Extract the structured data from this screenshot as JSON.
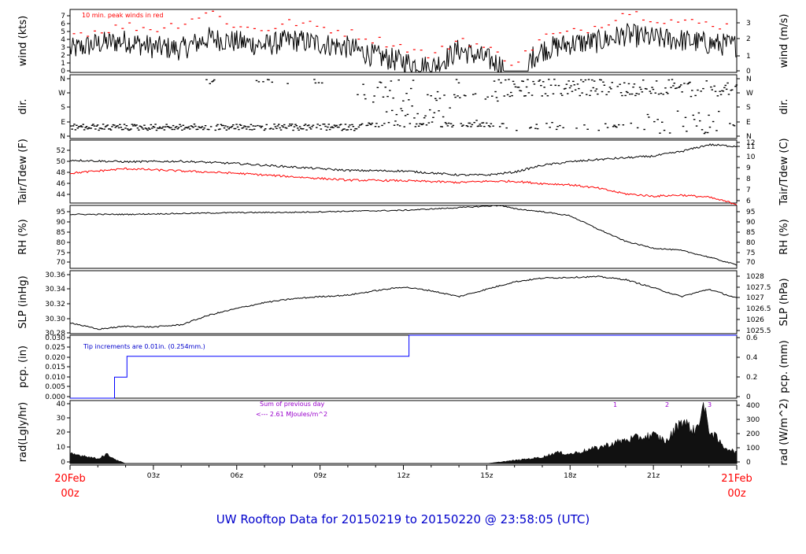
{
  "title": "UW Rooftop Data for 20150219  to  20150220 @ 23:58:05  (UTC)",
  "x_axis": {
    "start_label": [
      "20Feb",
      "00z"
    ],
    "end_label": [
      "21Feb",
      "00z"
    ],
    "ticks": [
      "03z",
      "06z",
      "09z",
      "12z",
      "15z",
      "18z",
      "21z"
    ],
    "label_color": "#ff0000"
  },
  "colors": {
    "line": "#000000",
    "peak": "#ff0000",
    "dew": "#ff0000",
    "pcp": "#0000ff",
    "annot": "#9900cc",
    "title": "#0000cc"
  },
  "panels": {
    "wind": {
      "left_label": "wind (kts)",
      "right_label": "wind (m/s)",
      "note": "10 min. peak winds in red"
    },
    "dir": {
      "left_label": "dir.",
      "right_label": "dir."
    },
    "temp": {
      "left_label": "Tair/Tdew (F)",
      "right_label": "Tair/Tdew (C)"
    },
    "rh": {
      "left_label": "RH (%)",
      "right_label": "RH (%)"
    },
    "slp": {
      "left_label": "SLP (inHg)",
      "right_label": "SLP (hPa)"
    },
    "pcp": {
      "left_label": "pcp. (in)",
      "right_label": "pcp. (mm)",
      "note": "Tip increments are 0.01in. (0.254mm.)"
    },
    "rad": {
      "left_label": "rad(Lgly/hr)",
      "right_label": "rad (W/m^2)",
      "note_1": "Sum of previous day",
      "note_2": "<--- 2.61 MJoules/m^2",
      "markers": [
        "1",
        "2",
        "3"
      ]
    }
  },
  "chart_data": [
    {
      "id": "wind",
      "type": "line",
      "ylabel": "wind (kts)",
      "ylabel_right": "wind (m/s)",
      "ylim": [
        0,
        7
      ],
      "yticks": [
        "0",
        "1",
        "2",
        "3",
        "4",
        "5",
        "6",
        "7"
      ],
      "yticks_right": [
        "0",
        "1",
        "2",
        "3"
      ],
      "x_hours": [
        0,
        1,
        2,
        3,
        4,
        5,
        6,
        7,
        8,
        9,
        10,
        11,
        12,
        13,
        14,
        15,
        16,
        17,
        18,
        19,
        20,
        21,
        22,
        23,
        24
      ],
      "series": [
        {
          "values": [
            2.5,
            3.2,
            3.5,
            2.8,
            2.6,
            3.8,
            3.4,
            3.0,
            3.6,
            3.2,
            2.8,
            1.8,
            1.2,
            0.5,
            2.5,
            1.5,
            0.2,
            2.5,
            3.2,
            3.4,
            4.2,
            3.8,
            3.6,
            3.2,
            3.0
          ]
        },
        {
          "values": [
            4.3,
            4.6,
            5.2,
            4.8,
            5.5,
            6.8,
            5.0,
            4.8,
            5.6,
            5.0,
            4.4,
            3.6,
            2.8,
            1.8,
            3.8,
            2.6,
            1.0,
            4.0,
            4.4,
            5.2,
            6.8,
            6.0,
            5.6,
            5.4,
            5.0
          ]
        }
      ]
    },
    {
      "id": "dir",
      "type": "scatter",
      "ylabel": "dir.",
      "yticks": [
        "N",
        "W",
        "S",
        "E",
        "N"
      ],
      "note": "wind direction points"
    },
    {
      "id": "temp",
      "type": "line",
      "ylabel": "Tair/Tdew (F)",
      "ylabel_right": "Tair/Tdew (C)",
      "ylim": [
        43,
        54
      ],
      "yticks": [
        "44",
        "46",
        "48",
        "50",
        "52"
      ],
      "yticks_right": [
        "6",
        "7",
        "8",
        "9",
        "10",
        "11",
        "12"
      ],
      "x_hours": [
        0,
        2,
        4,
        6,
        8,
        10,
        12,
        14,
        15,
        16,
        17,
        18,
        19,
        20,
        21,
        22,
        23,
        24
      ],
      "series": [
        {
          "values": [
            50.5,
            50.2,
            50.3,
            49.9,
            49.3,
            48.7,
            48.6,
            47.9,
            47.9,
            48.4,
            49.6,
            50.2,
            50.6,
            50.9,
            51.2,
            52.0,
            53.2,
            52.9
          ]
        },
        {
          "values": [
            48.2,
            49.0,
            48.6,
            48.2,
            47.6,
            47.0,
            46.9,
            46.6,
            46.8,
            46.8,
            46.4,
            46.2,
            45.6,
            44.6,
            44.2,
            44.4,
            44.0,
            42.8
          ]
        }
      ]
    },
    {
      "id": "rh",
      "type": "line",
      "ylabel": "RH (%)",
      "ylabel_right": "RH (%)",
      "ylim": [
        68,
        96
      ],
      "yticks": [
        "70",
        "75",
        "80",
        "85",
        "90",
        "95"
      ],
      "x_hours": [
        0,
        2,
        4,
        6,
        8,
        10,
        12,
        14,
        15.5,
        16,
        17,
        18,
        19,
        20,
        21,
        22,
        23,
        24
      ],
      "series": [
        {
          "values": [
            92.0,
            92.0,
            92.4,
            92.8,
            92.9,
            93.4,
            93.8,
            95.0,
            96.0,
            94.5,
            93.2,
            91.4,
            85.5,
            80.0,
            77.0,
            76.0,
            73.0,
            69.5
          ]
        }
      ]
    },
    {
      "id": "slp",
      "type": "line",
      "ylabel": "SLP (inHg)",
      "ylabel_right": "SLP (hPa)",
      "ylim": [
        30.28,
        30.365
      ],
      "yticks": [
        "30.28",
        "30.30",
        "30.32",
        "30.34",
        "30.36"
      ],
      "yticks_right": [
        "1025.5",
        "1026",
        "1026.5",
        "1027",
        "1027.5",
        "1028"
      ],
      "x_hours": [
        0,
        1,
        2,
        3,
        4,
        5,
        6,
        7,
        8,
        9,
        10,
        11,
        12,
        13,
        14,
        15,
        16,
        17,
        18,
        19,
        20,
        21,
        22,
        23,
        24
      ],
      "series": [
        {
          "values": [
            30.295,
            30.286,
            30.29,
            30.289,
            30.292,
            30.305,
            30.314,
            30.322,
            30.327,
            30.33,
            30.332,
            30.338,
            30.343,
            30.338,
            30.33,
            30.34,
            30.35,
            30.355,
            30.356,
            30.357,
            30.353,
            30.342,
            30.33,
            30.34,
            30.328
          ]
        }
      ]
    },
    {
      "id": "pcp",
      "type": "line",
      "ylabel": "pcp. (in)",
      "ylabel_right": "pcp. (mm)",
      "ylim": [
        0,
        0.03
      ],
      "yticks": [
        "0.000",
        "0.005",
        "0.010",
        "0.015",
        "0.020",
        "0.025",
        "0.030"
      ],
      "yticks_right": [
        "0",
        "0.2",
        "0.4",
        "0.6"
      ],
      "steps": [
        [
          0,
          0
        ],
        [
          1.6,
          0
        ],
        [
          1.6,
          0.01
        ],
        [
          2.05,
          0.01
        ],
        [
          2.05,
          0.02
        ],
        [
          12.2,
          0.02
        ],
        [
          12.2,
          0.03
        ],
        [
          24,
          0.03
        ]
      ]
    },
    {
      "id": "rad",
      "type": "area",
      "ylabel": "rad(Lgly/hr)",
      "ylabel_right": "rad (W/m^2)",
      "ylim": [
        0,
        40
      ],
      "yticks": [
        "0",
        "10",
        "20",
        "30",
        "40"
      ],
      "yticks_right": [
        "0",
        "100",
        "200",
        "300",
        "400"
      ],
      "x_hours": [
        0,
        0.5,
        1,
        1.3,
        1.7,
        2,
        3,
        4,
        5,
        6,
        7,
        8,
        9,
        10,
        11,
        12,
        13,
        14,
        15,
        16,
        17,
        17.5,
        18,
        19,
        20,
        21,
        21.5,
        22,
        22.5,
        22.8,
        23,
        23.5,
        24
      ],
      "values": [
        6,
        5,
        3,
        6,
        2,
        0,
        0,
        0,
        0,
        0,
        0,
        0,
        0,
        0,
        0,
        0,
        0,
        0,
        0,
        2,
        4,
        7,
        6,
        10,
        15,
        18,
        14,
        28,
        20,
        36,
        22,
        11,
        7
      ]
    }
  ]
}
